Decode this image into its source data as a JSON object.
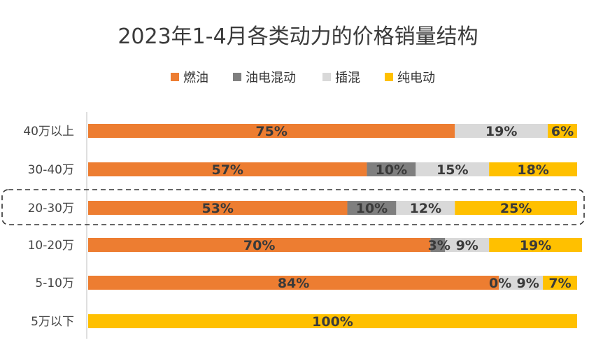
{
  "chart_data": {
    "type": "bar",
    "orientation": "horizontal",
    "stacked": true,
    "title": "2023年1-4月各类动力的价格销量结构",
    "legend_position": "top",
    "categories": [
      "40万以上",
      "30-40万",
      "20-30万",
      "10-20万",
      "5-10万",
      "5万以下"
    ],
    "highlighted_category": "20-30万",
    "series": [
      {
        "name": "燃油",
        "color": "#ED7D31",
        "values": [
          75,
          57,
          53,
          70,
          84,
          0
        ],
        "labels": [
          "75%",
          "57%",
          "53%",
          "70%",
          "84%",
          ""
        ]
      },
      {
        "name": "油电混动",
        "color": "#7F7F7F",
        "values": [
          0,
          10,
          10,
          3,
          0,
          0
        ],
        "labels": [
          "",
          "10%",
          "10%",
          "3%",
          "0%",
          ""
        ]
      },
      {
        "name": "插混",
        "color": "#D9D9D9",
        "values": [
          19,
          15,
          12,
          9,
          9,
          0
        ],
        "labels": [
          "19%",
          "15%",
          "12%",
          "9%",
          "9%",
          ""
        ]
      },
      {
        "name": "纯电动",
        "color": "#FFC000",
        "values": [
          6,
          18,
          25,
          19,
          7,
          100
        ],
        "labels": [
          "6%",
          "18%",
          "25%",
          "19%",
          "7%",
          "100%"
        ]
      }
    ],
    "xlim": [
      0,
      100
    ],
    "grid": false
  }
}
